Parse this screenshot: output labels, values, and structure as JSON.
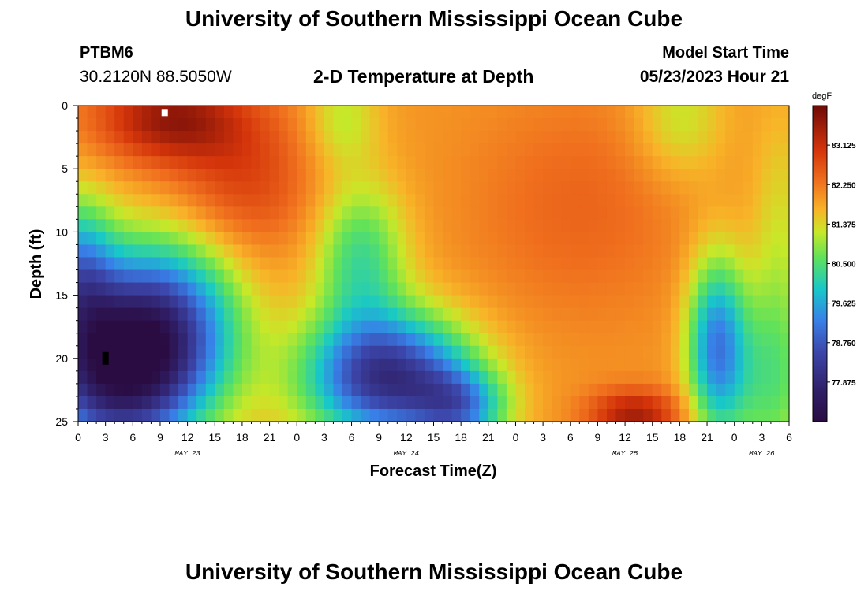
{
  "header": {
    "title": "University of Southern Mississippi Ocean Cube",
    "station_id": "PTBM6",
    "coordinates": "30.2120N  88.5050W",
    "subtitle": "2-D Temperature at Depth",
    "model_start_label": "Model Start Time",
    "model_start_value": "05/23/2023 Hour 21"
  },
  "footer": {
    "title": "University of Southern Mississippi Ocean Cube"
  },
  "chart_data": {
    "type": "heatmap",
    "title": "2-D Temperature at Depth",
    "xlabel": "Forecast Time(Z)",
    "ylabel": "Depth (ft)",
    "x_range_hours": [
      0,
      78
    ],
    "x_tick_labels": [
      "0",
      "3",
      "6",
      "9",
      "12",
      "15",
      "18",
      "21",
      "0",
      "3",
      "6",
      "9",
      "12",
      "15",
      "18",
      "21",
      "0",
      "3",
      "6",
      "9",
      "12",
      "15",
      "18",
      "21",
      "0",
      "3",
      "6"
    ],
    "x_tick_hours": [
      0,
      3,
      6,
      9,
      12,
      15,
      18,
      21,
      24,
      27,
      30,
      33,
      36,
      39,
      42,
      45,
      48,
      51,
      54,
      57,
      60,
      63,
      66,
      69,
      72,
      75,
      78
    ],
    "day_labels": [
      {
        "label": "MAY 23",
        "hour": 12
      },
      {
        "label": "MAY 24",
        "hour": 36
      },
      {
        "label": "MAY 25",
        "hour": 60
      },
      {
        "label": "MAY 26",
        "hour": 75
      }
    ],
    "y_range_ft": [
      0,
      25
    ],
    "y_ticks": [
      0,
      5,
      10,
      15,
      20,
      25
    ],
    "y_tick_labels": [
      "0",
      "5",
      "10",
      "15",
      "20",
      "25"
    ],
    "colorbar": {
      "unit": "degF",
      "min": 77.0,
      "max": 84.0,
      "tick_labels": [
        "83.125",
        "82.250",
        "81.375",
        "80.500",
        "79.625",
        "78.750",
        "77.875"
      ],
      "tick_values": [
        83.125,
        82.25,
        81.375,
        80.5,
        79.625,
        78.75,
        77.875
      ]
    },
    "grid": {
      "cols": 78,
      "rows": 25,
      "x_step_hours": 1,
      "y_step_ft": 1
    },
    "markers": [
      {
        "hour": 9.5,
        "depth_ft": 0.3,
        "color": "#ffffff"
      },
      {
        "hour": 3,
        "depth_ft": 20,
        "color": "#000000"
      }
    ]
  }
}
